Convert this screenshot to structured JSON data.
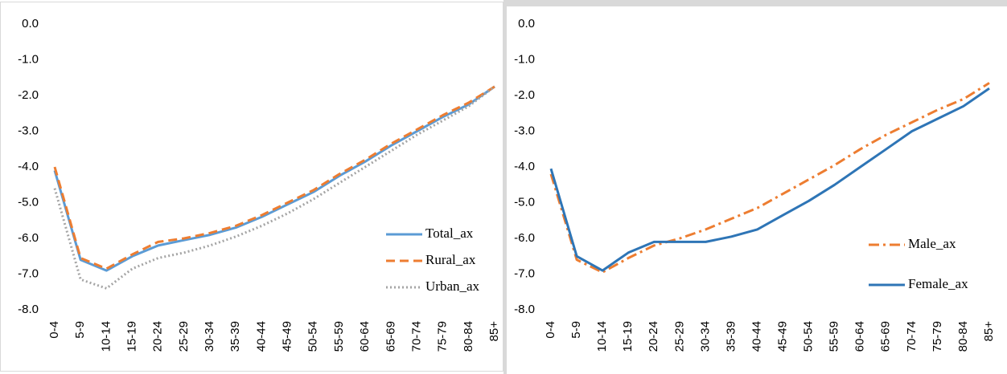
{
  "chart_data": [
    {
      "type": "line",
      "categories": [
        "0-4",
        "5-9",
        "10-14",
        "15-19",
        "20-24",
        "25-29",
        "30-34",
        "35-39",
        "40-44",
        "45-49",
        "50-54",
        "55-59",
        "60-64",
        "65-69",
        "70-74",
        "75-79",
        "80-84",
        "85+"
      ],
      "ylim": [
        -8,
        0
      ],
      "yticks": [
        {
          "value": 0,
          "label": "0.0"
        },
        {
          "value": -1,
          "label": "-1.0"
        },
        {
          "value": -2,
          "label": "-2.0"
        },
        {
          "value": -3,
          "label": "-3.0"
        },
        {
          "value": -4,
          "label": "-4.0"
        },
        {
          "value": -5,
          "label": "-5.0"
        },
        {
          "value": -6,
          "label": "-6.0"
        },
        {
          "value": -7,
          "label": "-7.0"
        },
        {
          "value": -8,
          "label": "-8.0"
        }
      ],
      "legend": "right",
      "series": [
        {
          "name": "Total_ax",
          "color": "#5b9bd5",
          "dash": "solid",
          "values": [
            -4.1,
            -6.6,
            -6.9,
            -6.5,
            -6.2,
            -6.05,
            -5.9,
            -5.7,
            -5.4,
            -5.05,
            -4.7,
            -4.25,
            -3.85,
            -3.4,
            -3.0,
            -2.6,
            -2.25,
            -1.75
          ]
        },
        {
          "name": "Rural_ax",
          "color": "#ed7d31",
          "dash": "dashed",
          "values": [
            -4.0,
            -6.55,
            -6.85,
            -6.45,
            -6.1,
            -6.0,
            -5.85,
            -5.65,
            -5.35,
            -5.0,
            -4.65,
            -4.2,
            -3.8,
            -3.35,
            -2.95,
            -2.55,
            -2.2,
            -1.75
          ]
        },
        {
          "name": "Urban_ax",
          "color": "#a5a5a5",
          "dash": "dotted",
          "values": [
            -4.6,
            -7.15,
            -7.4,
            -6.85,
            -6.55,
            -6.4,
            -6.2,
            -5.95,
            -5.65,
            -5.3,
            -4.9,
            -4.45,
            -4.0,
            -3.55,
            -3.1,
            -2.7,
            -2.3,
            -1.75
          ]
        }
      ]
    },
    {
      "type": "line",
      "categories": [
        "0-4",
        "5-9",
        "10-14",
        "15-19",
        "20-24",
        "25-29",
        "30-34",
        "35-39",
        "40-44",
        "45-49",
        "50-54",
        "55-59",
        "60-64",
        "65-69",
        "70-74",
        "75-79",
        "80-84",
        "85+"
      ],
      "ylim": [
        -8,
        0
      ],
      "yticks": [
        {
          "value": 0,
          "label": "0.0"
        },
        {
          "value": -1,
          "label": "-1.0"
        },
        {
          "value": -2,
          "label": "-2.0"
        },
        {
          "value": -3,
          "label": "-3.0"
        },
        {
          "value": -4,
          "label": "-4.0"
        },
        {
          "value": -5,
          "label": "-5.0"
        },
        {
          "value": -6,
          "label": "-6.0"
        },
        {
          "value": -7,
          "label": "-7.0"
        },
        {
          "value": -8,
          "label": "-8.0"
        }
      ],
      "legend": "right",
      "series": [
        {
          "name": "Male_ax",
          "color": "#ed7d31",
          "dash": "dashdot",
          "values": [
            -4.2,
            -6.6,
            -6.95,
            -6.55,
            -6.2,
            -6.0,
            -5.75,
            -5.45,
            -5.15,
            -4.75,
            -4.35,
            -3.95,
            -3.5,
            -3.1,
            -2.75,
            -2.4,
            -2.1,
            -1.65
          ]
        },
        {
          "name": "Female_ax",
          "color": "#2e75b6",
          "dash": "solid",
          "values": [
            -4.05,
            -6.5,
            -6.9,
            -6.4,
            -6.1,
            -6.1,
            -6.1,
            -5.95,
            -5.75,
            -5.35,
            -4.95,
            -4.5,
            -4.0,
            -3.5,
            -3.0,
            -2.65,
            -2.3,
            -1.8
          ]
        }
      ]
    }
  ]
}
